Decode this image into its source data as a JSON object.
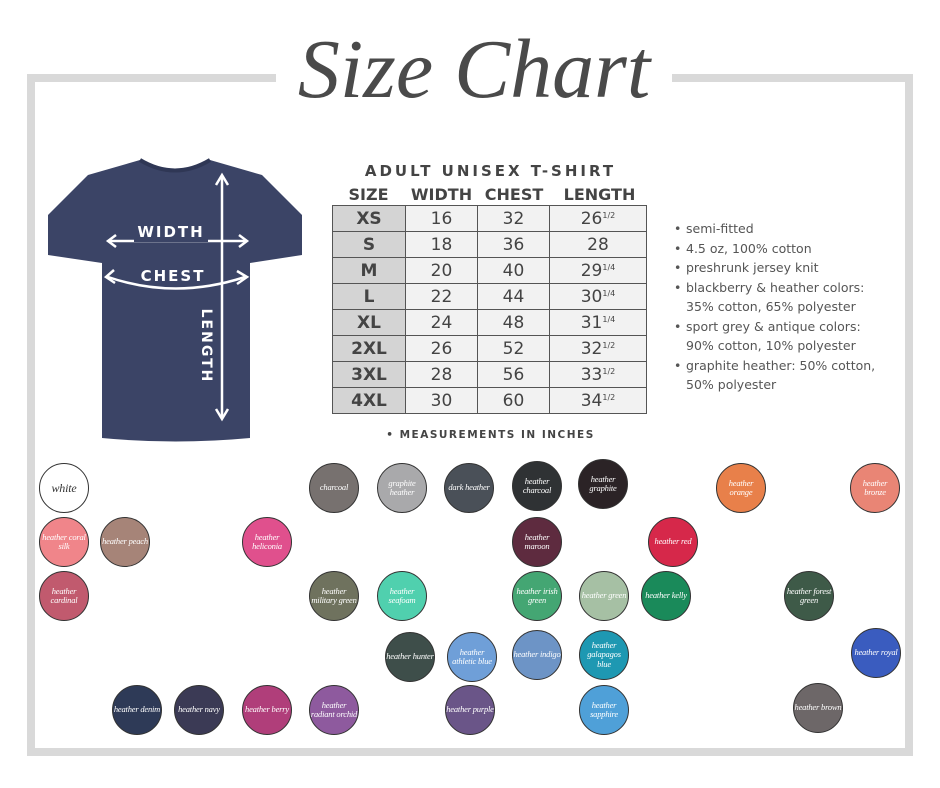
{
  "title": "Size Chart",
  "shirt": {
    "labels": {
      "width": "WIDTH",
      "chest": "CHEST",
      "length": "LENGTH"
    },
    "color": "#3b4466"
  },
  "table": {
    "title": "ADULT UNISEX T-SHIRT",
    "headers": [
      "SIZE",
      "WIDTH",
      "CHEST",
      "LENGTH"
    ],
    "rows": [
      {
        "size": "XS",
        "width": "16",
        "chest": "32",
        "length": "26",
        "frac": "1/2"
      },
      {
        "size": "S",
        "width": "18",
        "chest": "36",
        "length": "28",
        "frac": ""
      },
      {
        "size": "M",
        "width": "20",
        "chest": "40",
        "length": "29",
        "frac": "1/4"
      },
      {
        "size": "L",
        "width": "22",
        "chest": "44",
        "length": "30",
        "frac": "1/4"
      },
      {
        "size": "XL",
        "width": "24",
        "chest": "48",
        "length": "31",
        "frac": "1/4"
      },
      {
        "size": "2XL",
        "width": "26",
        "chest": "52",
        "length": "32",
        "frac": "1/2"
      },
      {
        "size": "3XL",
        "width": "28",
        "chest": "56",
        "length": "33",
        "frac": "1/2"
      },
      {
        "size": "4XL",
        "width": "30",
        "chest": "60",
        "length": "34",
        "frac": "1/2"
      }
    ],
    "note": "• MEASUREMENTS IN INCHES"
  },
  "features": [
    "semi-fitted",
    "4.5 oz, 100% cotton",
    "preshrunk jersey knit",
    "blackberry & heather colors:",
    "35% cotton, 65% polyester",
    "sport grey & antique colors:",
    "90% cotton, 10% polyester",
    "graphite heather: 50% cotton,",
    "50% polyester"
  ],
  "swatches": [
    {
      "label": "white",
      "color": "#ffffff"
    },
    {
      "label": "charcoal",
      "color": "#77716f"
    },
    {
      "label": "graphite heather",
      "color": "#a9a9ab"
    },
    {
      "label": "dark heather",
      "color": "#4a5058"
    },
    {
      "label": "heather charcoal",
      "color": "#2f3234"
    },
    {
      "label": "heather graphite",
      "color": "#2b2326"
    },
    {
      "label": "heather orange",
      "color": "#e8804a"
    },
    {
      "label": "heather bronze",
      "color": "#e98575"
    },
    {
      "label": "heather coral silk",
      "color": "#f0858a"
    },
    {
      "label": "heather peach",
      "color": "#a68478"
    },
    {
      "label": "heather heliconia",
      "color": "#e0508d"
    },
    {
      "label": "heather maroon",
      "color": "#5e2b3f"
    },
    {
      "label": "heather red",
      "color": "#d6284a"
    },
    {
      "label": "heather cardinal",
      "color": "#c15a6e"
    },
    {
      "label": "heather military green",
      "color": "#6f725e"
    },
    {
      "label": "heather seafoam",
      "color": "#50d0ae"
    },
    {
      "label": "heather irish green",
      "color": "#44a673"
    },
    {
      "label": "heather green",
      "color": "#a6c0a4"
    },
    {
      "label": "heather kelly",
      "color": "#1a8a5a"
    },
    {
      "label": "heather forest green",
      "color": "#3e5a48"
    },
    {
      "label": "heather hunter",
      "color": "#3e4e4a"
    },
    {
      "label": "heather athletic blue",
      "color": "#6f9fd8"
    },
    {
      "label": "heather indigo",
      "color": "#6d94c6"
    },
    {
      "label": "heather galapagos blue",
      "color": "#1e98b2"
    },
    {
      "label": "heather royal",
      "color": "#3a5cbf"
    },
    {
      "label": "heather denim",
      "color": "#2e3a57"
    },
    {
      "label": "heather navy",
      "color": "#3b3a55"
    },
    {
      "label": "heather berry",
      "color": "#b03e7a"
    },
    {
      "label": "heather radiant orchid",
      "color": "#8e5a9e"
    },
    {
      "label": "heather purple",
      "color": "#6a5588"
    },
    {
      "label": "heather sapphire",
      "color": "#4fa0d8"
    },
    {
      "label": "heather brown",
      "color": "#6d6768"
    }
  ]
}
